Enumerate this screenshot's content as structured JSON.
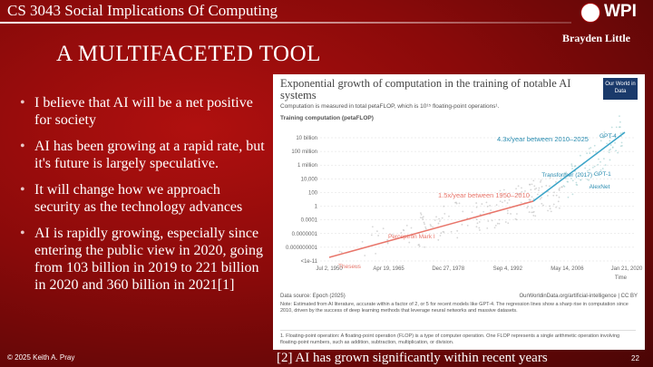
{
  "header": {
    "course": "CS 3043 Social Implications Of Computing",
    "logo": "WPI",
    "author": "Brayden Little"
  },
  "title": "A MULTIFACETED TOOL",
  "bullets": [
    "I believe that AI will be a net positive for society",
    "AI has been growing at a rapid rate, but it's future is largely speculative.",
    "It will change how we approach security as the technology advances",
    "AI is rapidly growing, especially since entering the public view in 2020, going from 103 billion in 2019 to 221 billion in 2020 and 360 billion in 2021[1]"
  ],
  "figure": {
    "title": "Exponential growth of computation in the training of notable AI systems",
    "subtitle": "Computation is measured in total petaFLOP, which is 10¹⁵ floating-point operations¹.",
    "badge": "Our World in Data",
    "y_axis_label": "Training computation (petaFLOP)",
    "y_tick_labels": [
      "10 billion",
      "100 million",
      "1 million",
      "10,000",
      "100",
      "1",
      "0.0001",
      "0.0000001",
      "0.000000001",
      "<1e-11"
    ],
    "x_tick_labels": [
      "Jul 2, 1950",
      "Apr 19, 1965",
      "Dec 27, 1978",
      "Sep 4, 1992",
      "May 14, 2006",
      "Jan 21, 2020"
    ],
    "x_axis_label": "Time",
    "annotations": [
      "1.5x/year between 1950–2010",
      "4.3x/year between 2010–2025"
    ],
    "systems": [
      "Theseus",
      "Perceptron Mark I",
      "AlexNet",
      "Transformer (2017)",
      "GPT-1",
      "GPT-4"
    ],
    "source": "Data source: Epoch (2025)",
    "credit": "OurWorldinData.org/artificial-intelligence | CC BY",
    "note": "Note: Estimated from AI literature, accurate within a factor of 2, or 5 for recent models like GPT-4. The regression lines show a sharp rise in computation since 2010, driven by the success of deep learning methods that leverage neural networks and massive datasets.",
    "footnote": "1. Floating-point operation: A floating-point operation (FLOP) is a type of computer operation. One FLOP represents a single arithmetic operation involving floating-point numbers, such as addition, subtraction, multiplication, or division."
  },
  "footer": {
    "copyright": "© 2025 Keith A. Pray",
    "caption": "[2] AI has grown significantly within recent years",
    "page": "22"
  }
}
